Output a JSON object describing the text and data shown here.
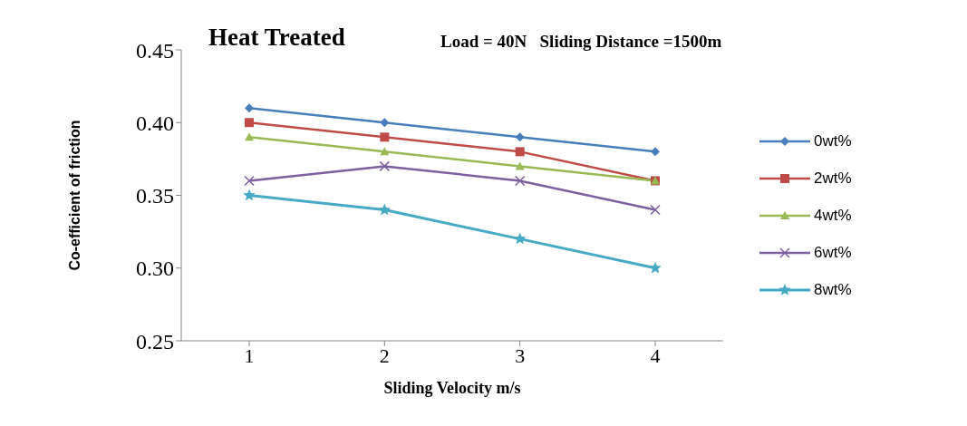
{
  "chart_data": {
    "type": "line",
    "title": "Heat Treated",
    "annotations": [
      "Load = 40N   Sliding Distance =1500m"
    ],
    "xlabel": "Sliding Velocity m/s",
    "ylabel": "Co-efficient of friction",
    "categories": [
      "1",
      "2",
      "3",
      "4"
    ],
    "ylim": [
      0.25,
      0.45
    ],
    "yticks": [
      {
        "value": 0.25,
        "label": "0.25"
      },
      {
        "value": 0.3,
        "label": "0.30"
      },
      {
        "value": 0.35,
        "label": "0.35"
      },
      {
        "value": 0.4,
        "label": "0.40"
      },
      {
        "value": 0.45,
        "label": "0.45"
      }
    ],
    "grid": false,
    "legend": "right",
    "series": [
      {
        "name": "0wt%",
        "color": "#4a7ebb",
        "marker": "diamond",
        "values": [
          0.41,
          0.4,
          0.39,
          0.38
        ]
      },
      {
        "name": "2wt%",
        "color": "#be4b48",
        "marker": "square",
        "values": [
          0.4,
          0.39,
          0.38,
          0.36
        ]
      },
      {
        "name": "4wt%",
        "color": "#98b954",
        "marker": "triangle",
        "values": [
          0.39,
          0.38,
          0.37,
          0.36
        ]
      },
      {
        "name": "6wt%",
        "color": "#7d60a0",
        "marker": "cross",
        "values": [
          0.36,
          0.37,
          0.36,
          0.34
        ]
      },
      {
        "name": "8wt%",
        "color": "#46aac5",
        "marker": "star",
        "values": [
          0.35,
          0.34,
          0.32,
          0.3
        ]
      }
    ]
  }
}
